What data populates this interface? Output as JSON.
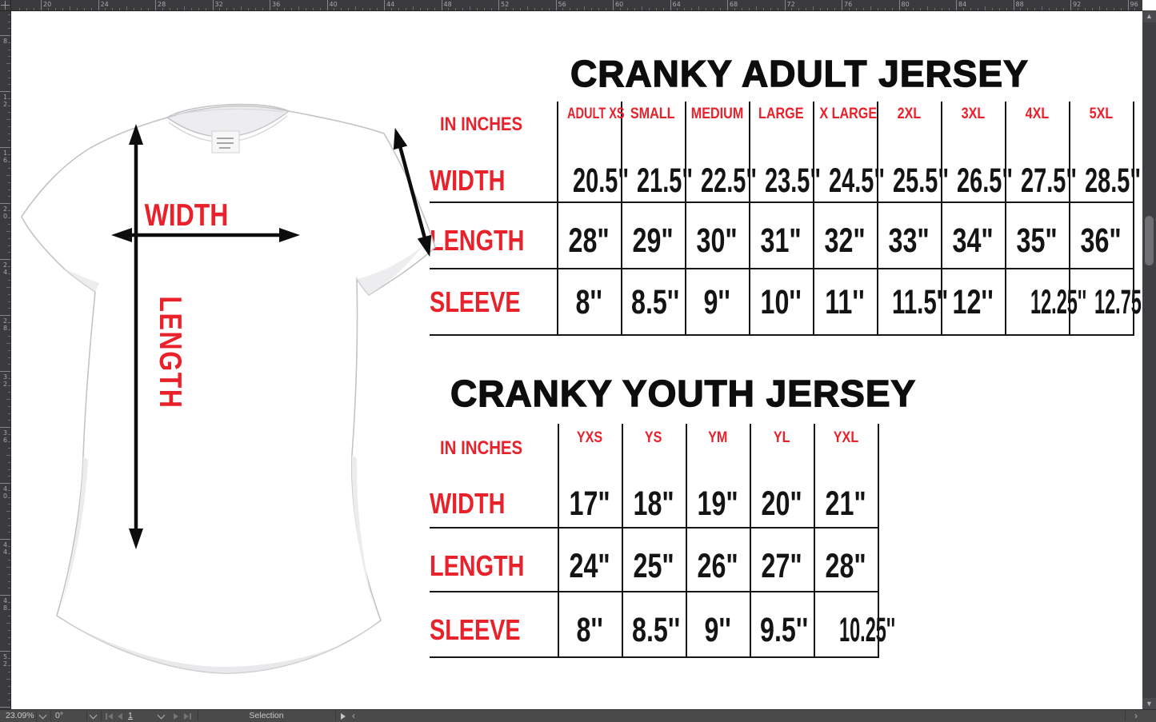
{
  "rulers": {
    "top_ticks": [
      "20",
      "24",
      "28",
      "32",
      "36",
      "40",
      "44",
      "48",
      "52",
      "56",
      "60",
      "64",
      "68",
      "72",
      "76",
      "80",
      "84",
      "88",
      "92",
      "96"
    ],
    "left_ticks": [
      "8",
      "12",
      "16",
      "20",
      "24",
      "28",
      "32",
      "36",
      "40",
      "44",
      "48",
      "52"
    ]
  },
  "statusbar": {
    "zoom": "23.09%",
    "rotation": "0°",
    "page": "1",
    "tool": "Selection"
  },
  "shirt": {
    "width_label": "WIDTH",
    "length_label": "LENGTH"
  },
  "adult": {
    "title": "CRANKY ADULT JERSEY",
    "unit_label": "IN INCHES",
    "columns": [
      "ADULT XS",
      "SMALL",
      "MEDIUM",
      "LARGE",
      "X LARGE",
      "2XL",
      "3XL",
      "4XL",
      "5XL"
    ],
    "rows": [
      {
        "label": "WIDTH",
        "values": [
          "20.5\"",
          "21.5\"",
          "22.5\"",
          "23.5\"",
          "24.5\"",
          "25.5\"",
          "26.5\"",
          "27.5\"",
          "28.5\""
        ]
      },
      {
        "label": "LENGTH",
        "values": [
          "28\"",
          "29\"",
          "30\"",
          "31\"",
          "32\"",
          "33\"",
          "34\"",
          "35\"",
          "36\""
        ]
      },
      {
        "label": "SLEEVE",
        "values": [
          "8''",
          "8.5''",
          "9''",
          "10''",
          "11''",
          "11.5''",
          "12''",
          "12.25''",
          "12.75''"
        ]
      }
    ]
  },
  "youth": {
    "title": "CRANKY YOUTH JERSEY",
    "unit_label": "IN INCHES",
    "columns": [
      "YXS",
      "YS",
      "YM",
      "YL",
      "YXL"
    ],
    "rows": [
      {
        "label": "WIDTH",
        "values": [
          "17\"",
          "18\"",
          "19\"",
          "20\"",
          "21\""
        ]
      },
      {
        "label": "LENGTH",
        "values": [
          "24\"",
          "25\"",
          "26\"",
          "27\"",
          "28\""
        ]
      },
      {
        "label": "SLEEVE",
        "values": [
          "8''",
          "8.5''",
          "9''",
          "9.5''",
          "10.25''"
        ]
      }
    ]
  },
  "colors": {
    "accent_red": "#e8212b",
    "table_line": "#161616",
    "ruler_bg": "#3b3b3d",
    "statusbar_bg": "#4a4a4b",
    "canvas_bg": "#ffffff"
  }
}
